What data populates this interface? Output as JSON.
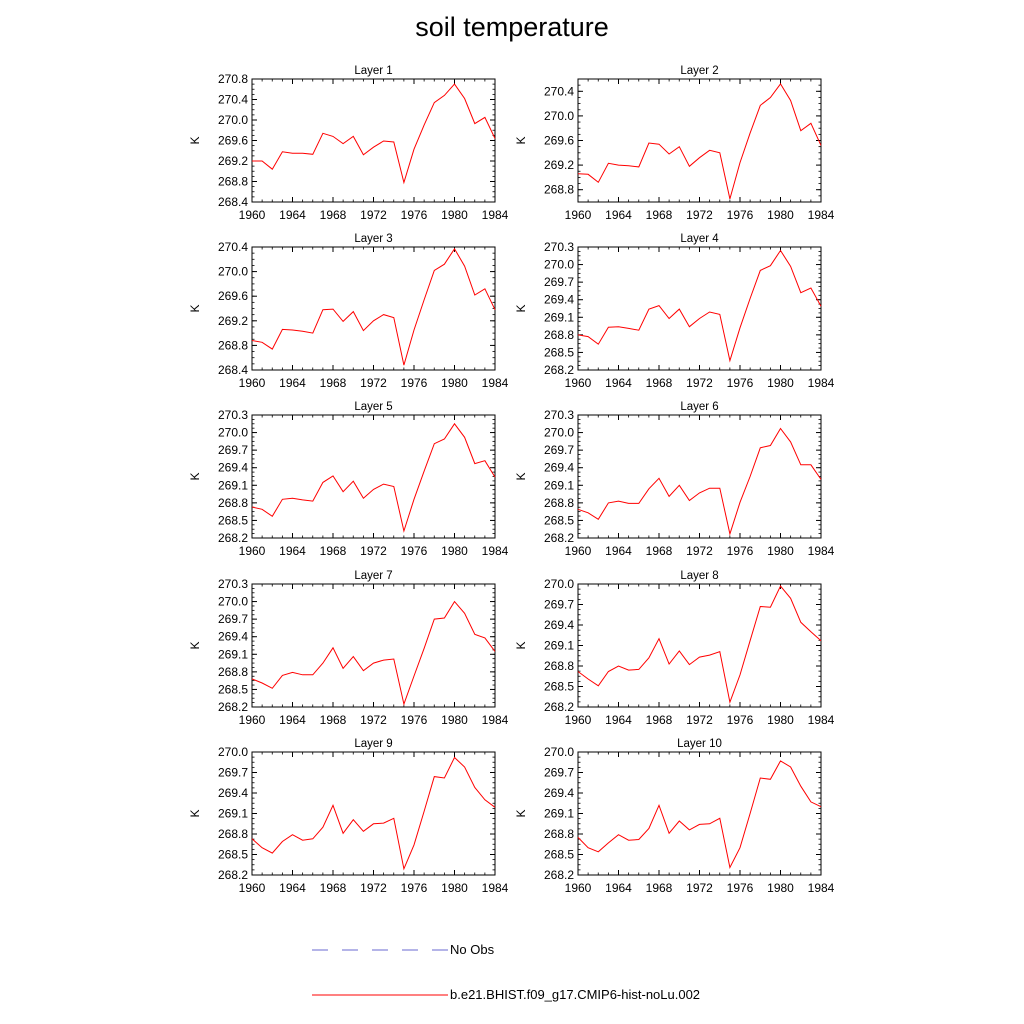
{
  "title": "soil temperature",
  "colors": {
    "model_line": "#ff0000",
    "obs_line": "#6a6ad0",
    "axis": "#000000"
  },
  "legend": {
    "obs_label": "No Obs",
    "model_label": "b.e21.BHIST.f09_g17.CMIP6-hist-noLu.002"
  },
  "chart_data": [
    {
      "type": "line",
      "title": "Layer 1",
      "ylabel": "K",
      "xlabel": "",
      "xlim": [
        1960,
        1984
      ],
      "ylim": [
        268.4,
        270.8
      ],
      "yticks": [
        "268.4",
        "268.8",
        "269.2",
        "269.6",
        "270.0",
        "270.4",
        "270.8"
      ],
      "xticks": [
        "1960",
        "1964",
        "1968",
        "1972",
        "1976",
        "1980",
        "1984"
      ],
      "series": [
        {
          "name": "b.e21.BHIST.f09_g17.CMIP6-hist-noLu.002",
          "x": [
            1960,
            1961,
            1962,
            1963,
            1964,
            1965,
            1966,
            1967,
            1968,
            1969,
            1970,
            1971,
            1972,
            1973,
            1974,
            1975,
            1976,
            1977,
            1978,
            1979,
            1980,
            1981,
            1982,
            1983,
            1984
          ],
          "values": [
            269.2,
            269.2,
            269.04,
            269.38,
            269.35,
            269.35,
            269.33,
            269.74,
            269.68,
            269.54,
            269.68,
            269.32,
            269.47,
            269.59,
            269.57,
            268.78,
            269.43,
            269.9,
            270.34,
            270.48,
            270.7,
            270.42,
            269.93,
            270.05,
            269.64
          ]
        }
      ]
    },
    {
      "type": "line",
      "title": "Layer 2",
      "ylabel": "K",
      "xlabel": "",
      "xlim": [
        1960,
        1984
      ],
      "ylim": [
        268.6,
        270.6
      ],
      "yticks": [
        "268.8",
        "269.2",
        "269.6",
        "270.0",
        "270.4"
      ],
      "xticks": [
        "1960",
        "1964",
        "1968",
        "1972",
        "1976",
        "1980",
        "1984"
      ],
      "series": [
        {
          "name": "b.e21.BHIST.f09_g17.CMIP6-hist-noLu.002",
          "x": [
            1960,
            1961,
            1962,
            1963,
            1964,
            1965,
            1966,
            1967,
            1968,
            1969,
            1970,
            1971,
            1972,
            1973,
            1974,
            1975,
            1976,
            1977,
            1978,
            1979,
            1980,
            1981,
            1982,
            1983,
            1984
          ],
          "values": [
            269.06,
            269.05,
            268.92,
            269.23,
            269.2,
            269.19,
            269.17,
            269.56,
            269.54,
            269.38,
            269.5,
            269.18,
            269.32,
            269.44,
            269.4,
            268.65,
            269.24,
            269.72,
            270.17,
            270.3,
            270.52,
            270.25,
            269.76,
            269.88,
            269.52
          ]
        }
      ]
    },
    {
      "type": "line",
      "title": "Layer 3",
      "ylabel": "K",
      "xlabel": "",
      "xlim": [
        1960,
        1984
      ],
      "ylim": [
        268.4,
        270.4
      ],
      "yticks": [
        "268.4",
        "268.8",
        "269.2",
        "269.6",
        "270.0",
        "270.4"
      ],
      "xticks": [
        "1960",
        "1964",
        "1968",
        "1972",
        "1976",
        "1980",
        "1984"
      ],
      "series": [
        {
          "name": "b.e21.BHIST.f09_g17.CMIP6-hist-noLu.002",
          "x": [
            1960,
            1961,
            1962,
            1963,
            1964,
            1965,
            1966,
            1967,
            1968,
            1969,
            1970,
            1971,
            1972,
            1973,
            1974,
            1975,
            1976,
            1977,
            1978,
            1979,
            1980,
            1981,
            1982,
            1983,
            1984
          ],
          "values": [
            268.88,
            268.85,
            268.74,
            269.06,
            269.05,
            269.03,
            269.0,
            269.38,
            269.39,
            269.19,
            269.35,
            269.04,
            269.2,
            269.3,
            269.25,
            268.48,
            269.05,
            269.54,
            270.02,
            270.12,
            270.37,
            270.09,
            269.62,
            269.72,
            269.38
          ]
        }
      ]
    },
    {
      "type": "line",
      "title": "Layer 4",
      "ylabel": "K",
      "xlabel": "",
      "xlim": [
        1960,
        1984
      ],
      "ylim": [
        268.2,
        270.3
      ],
      "yticks": [
        "268.2",
        "268.5",
        "268.8",
        "269.1",
        "269.4",
        "269.7",
        "270.0",
        "270.3"
      ],
      "xticks": [
        "1960",
        "1964",
        "1968",
        "1972",
        "1976",
        "1980",
        "1984"
      ],
      "series": [
        {
          "name": "b.e21.BHIST.f09_g17.CMIP6-hist-noLu.002",
          "x": [
            1960,
            1961,
            1962,
            1963,
            1964,
            1965,
            1966,
            1967,
            1968,
            1969,
            1970,
            1971,
            1972,
            1973,
            1974,
            1975,
            1976,
            1977,
            1978,
            1979,
            1980,
            1981,
            1982,
            1983,
            1984
          ],
          "values": [
            268.8,
            268.77,
            268.64,
            268.93,
            268.94,
            268.91,
            268.88,
            269.24,
            269.3,
            269.08,
            269.24,
            268.94,
            269.08,
            269.19,
            269.15,
            268.36,
            268.92,
            269.42,
            269.9,
            269.98,
            270.24,
            269.97,
            269.52,
            269.6,
            269.29
          ]
        }
      ]
    },
    {
      "type": "line",
      "title": "Layer 5",
      "ylabel": "K",
      "xlabel": "",
      "xlim": [
        1960,
        1984
      ],
      "ylim": [
        268.2,
        270.3
      ],
      "yticks": [
        "268.2",
        "268.5",
        "268.8",
        "269.1",
        "269.4",
        "269.7",
        "270.0",
        "270.3"
      ],
      "xticks": [
        "1960",
        "1964",
        "1968",
        "1972",
        "1976",
        "1980",
        "1984"
      ],
      "series": [
        {
          "name": "b.e21.BHIST.f09_g17.CMIP6-hist-noLu.002",
          "x": [
            1960,
            1961,
            1962,
            1963,
            1964,
            1965,
            1966,
            1967,
            1968,
            1969,
            1970,
            1971,
            1972,
            1973,
            1974,
            1975,
            1976,
            1977,
            1978,
            1979,
            1980,
            1981,
            1982,
            1983,
            1984
          ],
          "values": [
            268.73,
            268.69,
            268.57,
            268.86,
            268.88,
            268.85,
            268.83,
            269.15,
            269.26,
            268.99,
            269.17,
            268.88,
            269.03,
            269.12,
            269.08,
            268.32,
            268.86,
            269.34,
            269.81,
            269.89,
            270.15,
            269.92,
            269.47,
            269.52,
            269.24
          ]
        }
      ]
    },
    {
      "type": "line",
      "title": "Layer 6",
      "ylabel": "K",
      "xlabel": "",
      "xlim": [
        1960,
        1984
      ],
      "ylim": [
        268.2,
        270.3
      ],
      "yticks": [
        "268.2",
        "268.5",
        "268.8",
        "269.1",
        "269.4",
        "269.7",
        "270.0",
        "270.3"
      ],
      "xticks": [
        "1960",
        "1964",
        "1968",
        "1972",
        "1976",
        "1980",
        "1984"
      ],
      "series": [
        {
          "name": "b.e21.BHIST.f09_g17.CMIP6-hist-noLu.002",
          "x": [
            1960,
            1961,
            1962,
            1963,
            1964,
            1965,
            1966,
            1967,
            1968,
            1969,
            1970,
            1971,
            1972,
            1973,
            1974,
            1975,
            1976,
            1977,
            1978,
            1979,
            1980,
            1981,
            1982,
            1983,
            1984
          ],
          "values": [
            268.69,
            268.63,
            268.52,
            268.8,
            268.83,
            268.79,
            268.79,
            269.04,
            269.22,
            268.91,
            269.1,
            268.84,
            268.97,
            269.05,
            269.05,
            268.27,
            268.81,
            269.25,
            269.74,
            269.78,
            270.07,
            269.84,
            269.45,
            269.45,
            269.2
          ]
        }
      ]
    },
    {
      "type": "line",
      "title": "Layer 7",
      "ylabel": "K",
      "xlabel": "",
      "xlim": [
        1960,
        1984
      ],
      "ylim": [
        268.2,
        270.3
      ],
      "yticks": [
        "268.2",
        "268.5",
        "268.8",
        "269.1",
        "269.4",
        "269.7",
        "270.0",
        "270.3"
      ],
      "xticks": [
        "1960",
        "1964",
        "1968",
        "1972",
        "1976",
        "1980",
        "1984"
      ],
      "series": [
        {
          "name": "b.e21.BHIST.f09_g17.CMIP6-hist-noLu.002",
          "x": [
            1960,
            1961,
            1962,
            1963,
            1964,
            1965,
            1966,
            1967,
            1968,
            1969,
            1970,
            1971,
            1972,
            1973,
            1974,
            1975,
            1976,
            1977,
            1978,
            1979,
            1980,
            1981,
            1982,
            1983,
            1984
          ],
          "values": [
            268.68,
            268.61,
            268.52,
            268.74,
            268.79,
            268.75,
            268.75,
            268.95,
            269.21,
            268.86,
            269.06,
            268.82,
            268.95,
            269.0,
            269.02,
            268.25,
            268.73,
            269.2,
            269.7,
            269.72,
            270.0,
            269.8,
            269.44,
            269.38,
            269.15
          ]
        }
      ]
    },
    {
      "type": "line",
      "title": "Layer 8",
      "ylabel": "K",
      "xlabel": "",
      "xlim": [
        1960,
        1984
      ],
      "ylim": [
        268.2,
        270.0
      ],
      "yticks": [
        "268.2",
        "268.5",
        "268.8",
        "269.1",
        "269.4",
        "269.7",
        "270.0"
      ],
      "xticks": [
        "1960",
        "1964",
        "1968",
        "1972",
        "1976",
        "1980",
        "1984"
      ],
      "series": [
        {
          "name": "b.e21.BHIST.f09_g17.CMIP6-hist-noLu.002",
          "x": [
            1960,
            1961,
            1962,
            1963,
            1964,
            1965,
            1966,
            1967,
            1968,
            1969,
            1970,
            1971,
            1972,
            1973,
            1974,
            1975,
            1976,
            1977,
            1978,
            1979,
            1980,
            1981,
            1982,
            1983,
            1984
          ],
          "values": [
            268.72,
            268.61,
            268.51,
            268.72,
            268.8,
            268.74,
            268.75,
            268.92,
            269.2,
            268.83,
            269.02,
            268.82,
            268.93,
            268.96,
            269.01,
            268.27,
            268.67,
            269.17,
            269.67,
            269.66,
            269.97,
            269.79,
            269.44,
            269.3,
            269.17
          ]
        }
      ]
    },
    {
      "type": "line",
      "title": "Layer 9",
      "ylabel": "K",
      "xlabel": "",
      "xlim": [
        1960,
        1984
      ],
      "ylim": [
        268.2,
        270.0
      ],
      "yticks": [
        "268.2",
        "268.5",
        "268.8",
        "269.1",
        "269.4",
        "269.7",
        "270.0"
      ],
      "xticks": [
        "1960",
        "1964",
        "1968",
        "1972",
        "1976",
        "1980",
        "1984"
      ],
      "series": [
        {
          "name": "b.e21.BHIST.f09_g17.CMIP6-hist-noLu.002",
          "x": [
            1960,
            1961,
            1962,
            1963,
            1964,
            1965,
            1966,
            1967,
            1968,
            1969,
            1970,
            1971,
            1972,
            1973,
            1974,
            1975,
            1976,
            1977,
            1978,
            1979,
            1980,
            1981,
            1982,
            1983,
            1984
          ],
          "values": [
            268.73,
            268.6,
            268.52,
            268.69,
            268.79,
            268.71,
            268.73,
            268.9,
            269.22,
            268.81,
            269.01,
            268.84,
            268.95,
            268.96,
            269.03,
            268.29,
            268.64,
            269.13,
            269.64,
            269.62,
            269.92,
            269.78,
            269.48,
            269.3,
            269.19
          ]
        }
      ]
    },
    {
      "type": "line",
      "title": "Layer 10",
      "ylabel": "K",
      "xlabel": "",
      "xlim": [
        1960,
        1984
      ],
      "ylim": [
        268.2,
        270.0
      ],
      "yticks": [
        "268.2",
        "268.5",
        "268.8",
        "269.1",
        "269.4",
        "269.7",
        "270.0"
      ],
      "xticks": [
        "1960",
        "1964",
        "1968",
        "1972",
        "1976",
        "1980",
        "1984"
      ],
      "series": [
        {
          "name": "b.e21.BHIST.f09_g17.CMIP6-hist-noLu.002",
          "x": [
            1960,
            1961,
            1962,
            1963,
            1964,
            1965,
            1966,
            1967,
            1968,
            1969,
            1970,
            1971,
            1972,
            1973,
            1974,
            1975,
            1976,
            1977,
            1978,
            1979,
            1980,
            1981,
            1982,
            1983,
            1984
          ],
          "values": [
            268.75,
            268.6,
            268.54,
            268.67,
            268.79,
            268.71,
            268.72,
            268.88,
            269.22,
            268.81,
            268.99,
            268.86,
            268.94,
            268.95,
            269.03,
            268.31,
            268.6,
            269.1,
            269.62,
            269.6,
            269.87,
            269.78,
            269.5,
            269.27,
            269.2
          ]
        }
      ]
    }
  ]
}
